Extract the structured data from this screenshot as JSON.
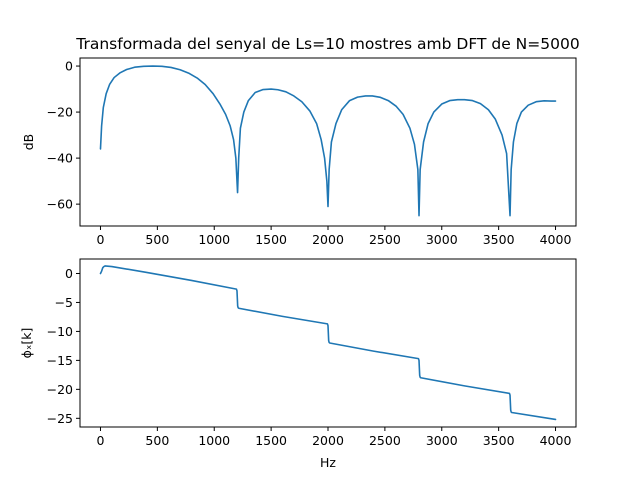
{
  "title": "Transformada del senyal de Ls=10 mostres amb DFT de N=5000",
  "colors": {
    "line": "#1f77b4",
    "axes": "#000000",
    "background": "#ffffff"
  },
  "chart_data": [
    {
      "type": "line",
      "title": "Transformada del senyal de Ls=10 mostres amb DFT de N=5000",
      "xlabel": "",
      "ylabel": "dB",
      "xlim": [
        -180,
        4180
      ],
      "ylim": [
        -69.5,
        3.5
      ],
      "xticks": [
        0,
        500,
        1000,
        1500,
        2000,
        2500,
        3000,
        3500,
        4000
      ],
      "xtick_labels": [
        "0",
        "500",
        "1000",
        "1500",
        "2000",
        "2500",
        "3000",
        "3500",
        "4000"
      ],
      "yticks": [
        0,
        -20,
        -40,
        -60
      ],
      "ytick_labels": [
        "0",
        "−20",
        "−40",
        "−60"
      ],
      "grid": false,
      "series": [
        {
          "x": [
            0,
            10,
            25,
            50,
            80,
            120,
            170,
            230,
            300,
            380,
            460,
            540,
            620,
            700,
            780,
            850,
            920,
            990,
            1050,
            1100,
            1140,
            1170,
            1190,
            1205,
            1215,
            1230,
            1260,
            1300,
            1360,
            1430,
            1500,
            1560,
            1630,
            1700,
            1770,
            1840,
            1900,
            1940,
            1970,
            1990,
            2000,
            2010,
            2030,
            2070,
            2120,
            2190,
            2260,
            2330,
            2390,
            2460,
            2530,
            2600,
            2660,
            2720,
            2760,
            2790,
            2800,
            2810,
            2840,
            2880,
            2930,
            3000,
            3070,
            3140,
            3200,
            3270,
            3340,
            3410,
            3470,
            3530,
            3570,
            3600,
            3610,
            3630,
            3660,
            3700,
            3760,
            3830,
            3900,
            3960,
            4000
          ],
          "y": [
            -36,
            -26,
            -18,
            -12,
            -8,
            -5,
            -3,
            -1.5,
            -0.5,
            -0.1,
            0,
            -0.1,
            -0.6,
            -1.6,
            -3.2,
            -5.2,
            -8,
            -12,
            -16.5,
            -21,
            -26,
            -32,
            -40,
            -55,
            -40,
            -27,
            -20,
            -15,
            -11.5,
            -10.2,
            -10,
            -10.3,
            -11.2,
            -13,
            -15.5,
            -19.5,
            -25,
            -32,
            -40,
            -50,
            -61,
            -45,
            -33,
            -25,
            -19,
            -15,
            -13.5,
            -13,
            -13,
            -13.6,
            -15,
            -17.5,
            -21,
            -27,
            -34,
            -45,
            -65,
            -45,
            -33,
            -25,
            -20,
            -16.5,
            -15,
            -14.6,
            -14.6,
            -15,
            -16.3,
            -19,
            -23,
            -30,
            -38,
            -65,
            -45,
            -33,
            -25,
            -20,
            -17,
            -15.5,
            -15.1,
            -15.2,
            -15.2
          ]
        }
      ]
    },
    {
      "type": "line",
      "title": "",
      "xlabel": "Hz",
      "ylabel": "ϕₓ[k]",
      "xlim": [
        -180,
        4180
      ],
      "ylim": [
        -26.5,
        2.5
      ],
      "xticks": [
        0,
        500,
        1000,
        1500,
        2000,
        2500,
        3000,
        3500,
        4000
      ],
      "xtick_labels": [
        "0",
        "500",
        "1000",
        "1500",
        "2000",
        "2500",
        "3000",
        "3500",
        "4000"
      ],
      "yticks": [
        0,
        -5,
        -10,
        -15,
        -20,
        -25
      ],
      "ytick_labels": [
        "0",
        "−5",
        "−10",
        "−15",
        "−20",
        "−25"
      ],
      "grid": false,
      "series": [
        {
          "x": [
            0,
            10,
            20,
            30,
            40,
            100,
            400,
            800,
            1195,
            1200,
            1203,
            1206,
            1210,
            1215,
            1600,
            1995,
            2000,
            2003,
            2006,
            2010,
            2015,
            2400,
            2795,
            2800,
            2803,
            2806,
            2810,
            2815,
            3200,
            3595,
            3600,
            3603,
            3606,
            3610,
            3615,
            4000
          ],
          "y": [
            0,
            0.4,
            1.0,
            1.2,
            1.3,
            1.2,
            0.2,
            -1.2,
            -2.7,
            -3.0,
            -4.3,
            -5.6,
            -5.9,
            -6.0,
            -7.4,
            -8.7,
            -9.0,
            -10.3,
            -11.6,
            -11.9,
            -12.0,
            -13.4,
            -14.7,
            -15.0,
            -16.3,
            -17.6,
            -17.9,
            -18.0,
            -19.4,
            -20.7,
            -21.0,
            -22.3,
            -23.6,
            -23.9,
            -24.0,
            -25.2
          ]
        }
      ]
    }
  ]
}
